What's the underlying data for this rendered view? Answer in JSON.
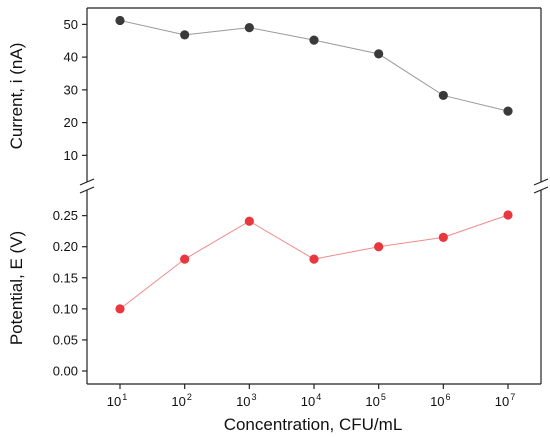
{
  "chart_data": {
    "type": "line",
    "x_axis": {
      "label": "Concentration, CFU/mL",
      "scale": "log",
      "values": [
        10,
        100,
        1000,
        10000,
        100000,
        1000000,
        10000000
      ],
      "tick_base": "10",
      "tick_exponents": [
        "1",
        "2",
        "3",
        "4",
        "5",
        "6",
        "7"
      ]
    },
    "panels": [
      {
        "name": "top",
        "ylabel": "Current, i (nA)",
        "ylim": [
          4,
          55
        ],
        "yticks": [
          "10",
          "20",
          "30",
          "40",
          "50"
        ],
        "series": [
          {
            "values": [
              51.2,
              46.8,
              49.0,
              45.2,
              41.0,
              28.3,
              23.5
            ],
            "color": "#3a3a3a",
            "line_color": "#9a9a9a"
          }
        ]
      },
      {
        "name": "bottom",
        "ylabel": "Potential, E (V)",
        "ylim": [
          0,
          0.28
        ],
        "yticks": [
          "0.00",
          "0.05",
          "0.10",
          "0.15",
          "0.20",
          "0.25"
        ],
        "series": [
          {
            "values": [
              0.1,
              0.18,
              0.241,
              0.18,
              0.2,
              0.215,
              0.251
            ],
            "color": "#e8373f",
            "line_color": "#f08a8e"
          }
        ]
      }
    ],
    "axis_break": true,
    "grid": false,
    "legend": "none"
  }
}
